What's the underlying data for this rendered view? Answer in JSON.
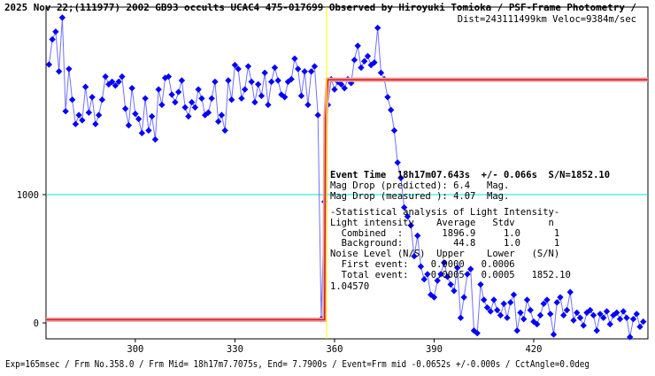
{
  "chart_data": {
    "type": "line",
    "title": "2025 Nov 22;(111977) 2002 GB93 occults UCAC4 475-017699 Observed by Hiroyuki Tomioka / PSF-Frame Photometry /",
    "subtitle": "Dist=243111499km Veloc=9384m/sec",
    "footer": "Exp=165msec / Frm No.358.0 / Frm Mid= 18h17m7.7075s, End= 7.7900s / Event=Frm mid -0.0652s +/-0.000s / CctAngle=0.0deg",
    "annotations": [
      "Event Time  18h17m07.643s  +/- 0.066s  S/N=1852.10",
      "Mag Drop (predicted): 6.4   Mag.",
      "Mag Drop (measured ): 4.07  Mag.",
      "-Statistical analysis of Light Intensity-",
      "Light intensity    Average   Stdv      n",
      "  Combined  :       1896.9     1.0      1",
      "  Background:         44.8     1.0      1",
      "Noise Level (N/S)  Upper    Lower   (S/N)",
      "  First event:    0.0000   0.0006",
      "  Total event:    0.0005   0.0005   1852.10",
      "1.04570"
    ],
    "xlim": [
      273.1,
      454.4
    ],
    "ylim": [
      -124,
      2462
    ],
    "xticks": [
      300,
      330,
      360,
      390,
      420
    ],
    "yticks": [
      0,
      1000
    ],
    "event_line_x": 357.6,
    "event_line_color": "#ffff00",
    "reference_line_y": 1000,
    "reference_line_color": "#00e0e0",
    "series": [
      {
        "name": "observed",
        "color": "#0000ff",
        "line_color": "#7070ff",
        "x": [
          274,
          275,
          276,
          277,
          278,
          279,
          280,
          281,
          282,
          283,
          284,
          285,
          286,
          287,
          288,
          289,
          290,
          291,
          292,
          293,
          294,
          295,
          296,
          297,
          298,
          299,
          300,
          301,
          302,
          303,
          304,
          305,
          306,
          307,
          308,
          309,
          310,
          311,
          312,
          313,
          314,
          315,
          316,
          317,
          318,
          319,
          320,
          321,
          322,
          323,
          324,
          325,
          326,
          327,
          328,
          329,
          330,
          331,
          332,
          333,
          334,
          335,
          336,
          337,
          338,
          339,
          340,
          341,
          342,
          343,
          344,
          345,
          346,
          347,
          348,
          349,
          350,
          351,
          352,
          353,
          354,
          355,
          356,
          357,
          358,
          359,
          360,
          361,
          362,
          363,
          364,
          365,
          366,
          367,
          368,
          369,
          370,
          371,
          372,
          373,
          374,
          375,
          376,
          377,
          378,
          379,
          380,
          381,
          382,
          383,
          384,
          385,
          386,
          387,
          388,
          389,
          390,
          391,
          392,
          393,
          394,
          395,
          396,
          397,
          398,
          399,
          400,
          401,
          402,
          403,
          404,
          405,
          406,
          407,
          408,
          409,
          410,
          411,
          412,
          413,
          414,
          415,
          416,
          417,
          418,
          419,
          420,
          421,
          422,
          423,
          424,
          425,
          426,
          427,
          428,
          429,
          430,
          431,
          432,
          433,
          434,
          435,
          436,
          437,
          438,
          439,
          440,
          441,
          442,
          443,
          444,
          445,
          446,
          447,
          448,
          449,
          450,
          451,
          452,
          453
        ],
        "values": [
          2014,
          2210,
          2270,
          1960,
          2380,
          1650,
          1980,
          1740,
          1550,
          1620,
          1580,
          1840,
          1640,
          1760,
          1550,
          1620,
          1740,
          1920,
          1860,
          1880,
          1850,
          1880,
          1920,
          1670,
          1540,
          1830,
          1630,
          1590,
          1480,
          1750,
          1500,
          1610,
          1430,
          1820,
          1700,
          1910,
          1920,
          1780,
          1720,
          1800,
          1890,
          1680,
          1610,
          1720,
          1680,
          1820,
          1750,
          1620,
          1640,
          1750,
          1880,
          1570,
          1620,
          1500,
          1890,
          1740,
          2010,
          1980,
          1750,
          1820,
          2000,
          1880,
          1720,
          1860,
          1770,
          1950,
          1700,
          1880,
          1990,
          1890,
          1780,
          1760,
          1880,
          1900,
          2060,
          1980,
          1770,
          1960,
          1700,
          1960,
          2000,
          1620,
          30,
          945,
          1700,
          1900,
          1820,
          1880,
          1860,
          1830,
          1900,
          1870,
          2050,
          2160,
          1990,
          2040,
          2080,
          2010,
          2030,
          2300,
          1950,
          1900,
          1760,
          1660,
          1500,
          1250,
          1130,
          900,
          830,
          760,
          520,
          680,
          440,
          340,
          380,
          220,
          200,
          330,
          380,
          470,
          360,
          300,
          250,
          430,
          40,
          200,
          380,
          420,
          -60,
          -80,
          300,
          180,
          120,
          90,
          180,
          100,
          60,
          150,
          40,
          160,
          220,
          -60,
          80,
          30,
          180,
          100,
          10,
          -10,
          60,
          150,
          180,
          70,
          -90,
          160,
          200,
          60,
          100,
          240,
          20,
          80,
          40,
          -20,
          80,
          100,
          60,
          -60,
          70,
          40,
          90,
          -10,
          60,
          80,
          30,
          90,
          40,
          -110,
          30,
          70,
          -30,
          10
        ]
      },
      {
        "name": "model",
        "color": "#d02020",
        "x": [
          273.1,
          357,
          357.3,
          358,
          454.4
        ],
        "values": [
          25,
          25,
          1600,
          1896,
          1896
        ]
      }
    ]
  }
}
